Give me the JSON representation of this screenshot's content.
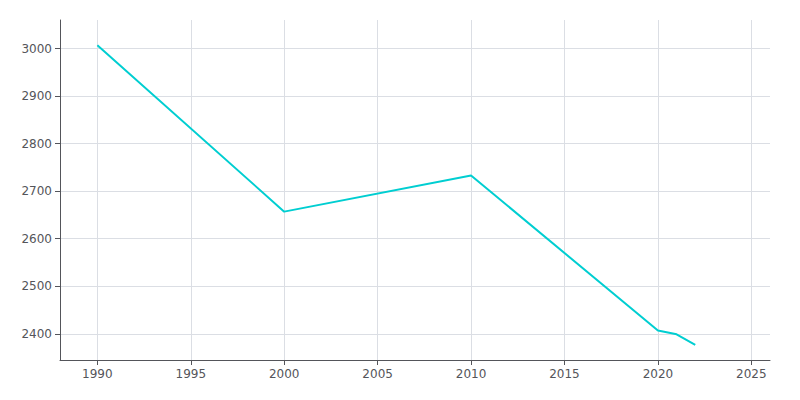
{
  "chart_data": {
    "type": "line",
    "x": [
      1990,
      2000,
      2010,
      2020,
      2021,
      2022
    ],
    "values": [
      3007,
      2657,
      2733,
      2407,
      2399,
      2377
    ],
    "color": "#00CED1",
    "xlim": [
      1988,
      2026
    ],
    "ylim": [
      2345,
      3060
    ],
    "xticks": [
      1990,
      1995,
      2000,
      2005,
      2010,
      2015,
      2020,
      2025
    ],
    "yticks": [
      2400,
      2500,
      2600,
      2700,
      2800,
      2900,
      3000
    ],
    "grid": true
  }
}
